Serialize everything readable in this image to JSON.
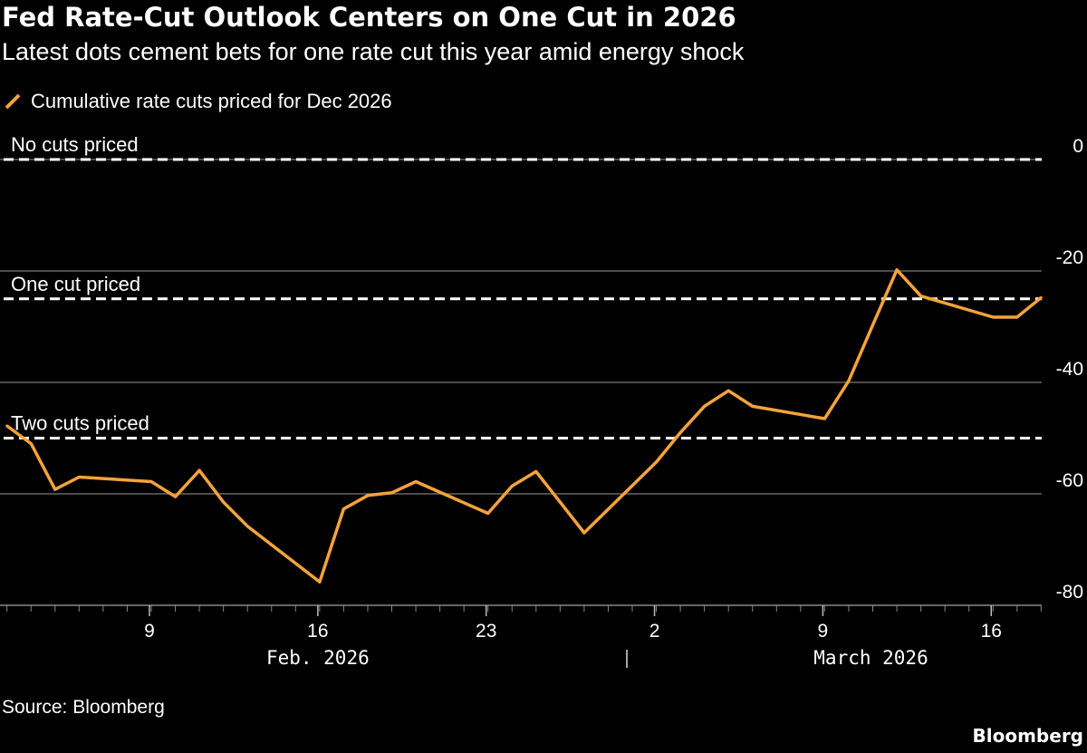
{
  "title": "Fed Rate-Cut Outlook Centers on One Cut in 2026",
  "subtitle": "Latest dots cement bets for one rate cut this year amid energy shock",
  "source": "Source: Bloomberg",
  "brand": "Bloomberg",
  "chart_data": {
    "type": "line",
    "title": "Fed Rate-Cut Outlook Centers on One Cut in 2026",
    "xlabel": "",
    "ylabel": "",
    "ylim": [
      -80,
      0
    ],
    "yticks": [
      0,
      -20,
      -40,
      -60,
      -80
    ],
    "ytick_labels": [
      "0",
      "-20",
      "-40",
      "-60",
      "-80"
    ],
    "y_axis_position": "right",
    "grid": true,
    "legend_placement": "top-left",
    "xtick_labels": [
      {
        "date": "2026-02-09",
        "label": "9"
      },
      {
        "date": "2026-02-16",
        "label": "16"
      },
      {
        "date": "2026-02-23",
        "label": "23"
      },
      {
        "date": "2026-03-02",
        "label": "2"
      },
      {
        "date": "2026-03-09",
        "label": "9"
      },
      {
        "date": "2026-03-16",
        "label": "16"
      }
    ],
    "month_labels": [
      {
        "date": "2026-02-16",
        "label": "Feb. 2026"
      },
      {
        "date": "2026-03-11",
        "label": "March 2026"
      }
    ],
    "reference_lines": [
      {
        "y": 0,
        "label": "No cuts priced"
      },
      {
        "y": -25,
        "label": "One cut priced"
      },
      {
        "y": -50,
        "label": "Two cuts priced"
      }
    ],
    "series": [
      {
        "name": "Cumulative rate cuts priced for Dec 2026",
        "color": "#f5a33a",
        "x": [
          "2026-02-03",
          "2026-02-04",
          "2026-02-05",
          "2026-02-06",
          "2026-02-09",
          "2026-02-10",
          "2026-02-11",
          "2026-02-12",
          "2026-02-13",
          "2026-02-16",
          "2026-02-17",
          "2026-02-18",
          "2026-02-19",
          "2026-02-20",
          "2026-02-23",
          "2026-02-24",
          "2026-02-25",
          "2026-02-26",
          "2026-02-27",
          "2026-03-02",
          "2026-03-03",
          "2026-03-04",
          "2026-03-05",
          "2026-03-06",
          "2026-03-09",
          "2026-03-10",
          "2026-03-11",
          "2026-03-12",
          "2026-03-13",
          "2026-03-16",
          "2026-03-17",
          "2026-03-18"
        ],
        "values": [
          -47.8,
          -51,
          -59.2,
          -57,
          -57.8,
          -60.5,
          -55.8,
          -61.5,
          -65.8,
          -75.8,
          -62.7,
          -60.3,
          -59.8,
          -57.8,
          -63.5,
          -58.6,
          -56,
          -61.5,
          -67,
          -54.3,
          -49,
          -44.3,
          -41.5,
          -44.3,
          -46.5,
          -39.7,
          -29.7,
          -19.8,
          -24.5,
          -28.3,
          -28.3,
          -24.8
        ]
      }
    ]
  }
}
